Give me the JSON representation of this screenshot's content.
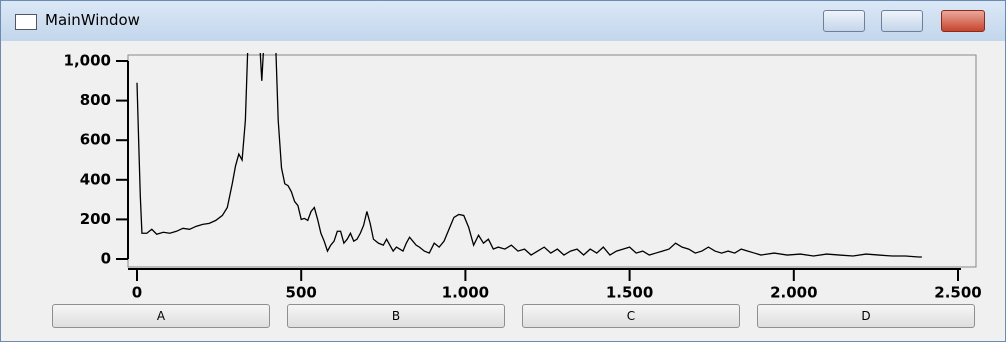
{
  "window": {
    "title": "MainWindow",
    "buttons": [
      "A",
      "B",
      "C",
      "D"
    ]
  },
  "chart_data": {
    "type": "line",
    "color": "#000000",
    "x": [
      0,
      5,
      10,
      15,
      30,
      45,
      60,
      80,
      100,
      120,
      140,
      160,
      180,
      200,
      220,
      240,
      260,
      275,
      290,
      300,
      310,
      320,
      330,
      340,
      370,
      380,
      390,
      420,
      430,
      440,
      450,
      460,
      470,
      480,
      490,
      500,
      510,
      520,
      530,
      540,
      550,
      560,
      570,
      580,
      590,
      600,
      610,
      620,
      630,
      640,
      650,
      660,
      670,
      680,
      690,
      700,
      710,
      720,
      735,
      750,
      760,
      770,
      780,
      790,
      800,
      810,
      820,
      830,
      840,
      850,
      860,
      875,
      890,
      905,
      920,
      935,
      950,
      965,
      980,
      995,
      1010,
      1025,
      1040,
      1055,
      1070,
      1085,
      1100,
      1120,
      1140,
      1160,
      1180,
      1200,
      1220,
      1240,
      1260,
      1280,
      1300,
      1320,
      1340,
      1360,
      1380,
      1400,
      1420,
      1440,
      1460,
      1480,
      1500,
      1520,
      1540,
      1560,
      1580,
      1600,
      1620,
      1640,
      1660,
      1680,
      1700,
      1720,
      1740,
      1760,
      1780,
      1800,
      1820,
      1840,
      1860,
      1880,
      1900,
      1940,
      1980,
      2020,
      2060,
      2100,
      2140,
      2180,
      2220,
      2260,
      2300,
      2340,
      2380,
      2390
    ],
    "values": [
      890,
      600,
      320,
      130,
      130,
      150,
      125,
      135,
      130,
      140,
      155,
      150,
      165,
      175,
      180,
      195,
      220,
      260,
      380,
      470,
      530,
      500,
      700,
      1200,
      1200,
      900,
      1200,
      1200,
      700,
      460,
      380,
      370,
      340,
      290,
      270,
      200,
      205,
      195,
      240,
      260,
      200,
      130,
      90,
      40,
      70,
      90,
      140,
      140,
      80,
      100,
      130,
      90,
      100,
      130,
      170,
      240,
      180,
      100,
      80,
      70,
      100,
      70,
      40,
      60,
      50,
      40,
      80,
      110,
      90,
      70,
      60,
      40,
      30,
      80,
      60,
      90,
      150,
      210,
      225,
      220,
      160,
      70,
      120,
      80,
      100,
      50,
      60,
      50,
      70,
      40,
      50,
      20,
      40,
      60,
      30,
      50,
      20,
      40,
      50,
      20,
      50,
      30,
      60,
      20,
      40,
      50,
      60,
      30,
      40,
      20,
      30,
      40,
      50,
      80,
      60,
      50,
      30,
      40,
      60,
      40,
      30,
      40,
      30,
      50,
      40,
      30,
      20,
      30,
      20,
      25,
      15,
      25,
      20,
      15,
      25,
      20,
      15,
      15,
      10,
      10
    ],
    "xlim": [
      0,
      2500
    ],
    "ylim": [
      0,
      1000
    ],
    "xticks": [
      0,
      500,
      {
        "value": 1000,
        "label": "1.000"
      },
      {
        "value": 1500,
        "label": "1.500"
      },
      {
        "value": 2000,
        "label": "2.000"
      },
      {
        "value": 2500,
        "label": "2.500"
      }
    ],
    "yticks": [
      0,
      200,
      400,
      600,
      800,
      {
        "value": 1000,
        "label": "1,000"
      }
    ]
  }
}
